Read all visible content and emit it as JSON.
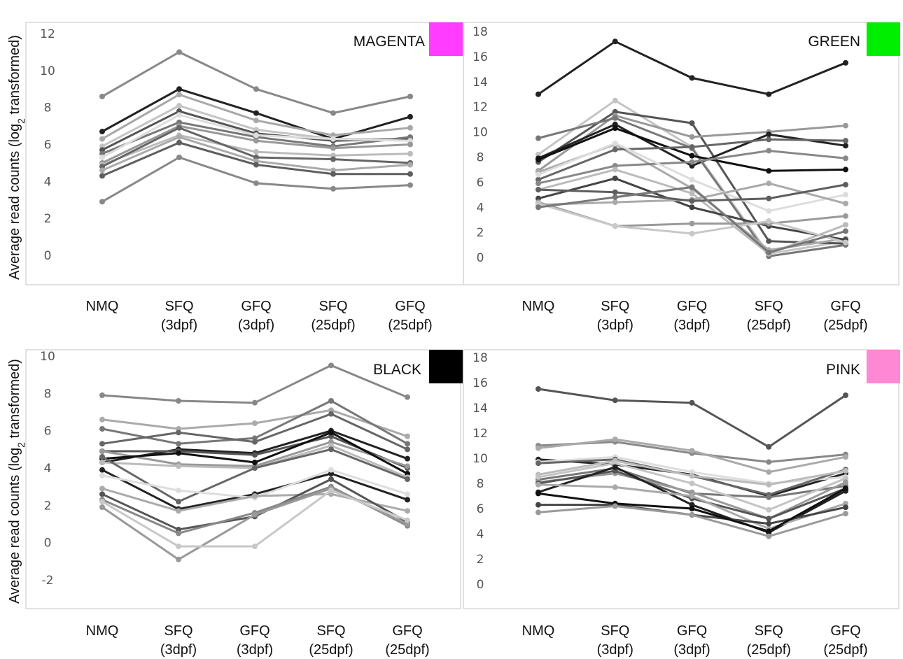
{
  "y_axis_label": "Average read counts (log",
  "y_axis_label_sub": "2",
  "y_axis_label_tail": " transformed)",
  "chart_data": [
    {
      "type": "line",
      "title": "MAGENTA",
      "color": "#ff3cff",
      "categories": [
        [
          "NMQ"
        ],
        [
          "SFQ",
          "(3dpf)"
        ],
        [
          "GFQ",
          "(3dpf)"
        ],
        [
          "SFQ",
          "(25dpf)"
        ],
        [
          "GFQ",
          "(25dpf)"
        ]
      ],
      "ylim": [
        -0.8,
        12.8
      ],
      "yticks": [
        0,
        2,
        4,
        6,
        8,
        10,
        12
      ],
      "series": [
        {
          "color": "#888888",
          "values": [
            8.6,
            11.0,
            9.0,
            7.7,
            8.6
          ]
        },
        {
          "color": "#222222",
          "values": [
            6.7,
            9.0,
            7.7,
            6.3,
            7.5
          ]
        },
        {
          "color": "#a8a8a8",
          "values": [
            6.3,
            8.7,
            7.3,
            6.5,
            6.9
          ]
        },
        {
          "color": "#c4c4c4",
          "values": [
            5.9,
            8.1,
            6.8,
            6.3,
            6.3
          ]
        },
        {
          "color": "#555555",
          "values": [
            5.7,
            7.8,
            6.6,
            6.2,
            6.3
          ]
        },
        {
          "color": "#777777",
          "values": [
            5.5,
            7.2,
            6.4,
            5.9,
            6.4
          ]
        },
        {
          "color": "#dddddd",
          "values": [
            5.3,
            7.6,
            6.5,
            6.3,
            6.2
          ]
        },
        {
          "color": "#999999",
          "values": [
            5.0,
            7.0,
            6.2,
            5.8,
            6.0
          ]
        },
        {
          "color": "#bbbbbb",
          "values": [
            4.9,
            6.5,
            5.6,
            5.4,
            5.5
          ]
        },
        {
          "color": "#666666",
          "values": [
            4.8,
            6.9,
            5.3,
            5.2,
            5.0
          ]
        },
        {
          "color": "#aaaaaa",
          "values": [
            4.6,
            6.4,
            5.1,
            4.6,
            4.9
          ]
        },
        {
          "color": "#5e5e5e",
          "values": [
            4.3,
            6.1,
            4.9,
            4.4,
            4.4
          ]
        },
        {
          "color": "#888888",
          "values": [
            2.9,
            5.3,
            3.9,
            3.6,
            3.8
          ]
        }
      ]
    },
    {
      "type": "line",
      "title": "GREEN",
      "color": "#00ee00",
      "categories": [
        [
          "NMQ"
        ],
        [
          "SFQ",
          "(3dpf)"
        ],
        [
          "GFQ",
          "(3dpf)"
        ],
        [
          "SFQ",
          "(25dpf)"
        ],
        [
          "GFQ",
          "(25dpf)"
        ]
      ],
      "ylim": [
        -1,
        19
      ],
      "yticks": [
        0,
        2,
        4,
        6,
        8,
        10,
        12,
        14,
        16,
        18
      ],
      "series": [
        {
          "color": "#222222",
          "values": [
            13.0,
            17.2,
            14.3,
            13.0,
            15.5
          ]
        },
        {
          "color": "#c4c4c4",
          "values": [
            8.2,
            12.5,
            8.8,
            0.3,
            1.3
          ]
        },
        {
          "color": "#555555",
          "values": [
            7.6,
            11.6,
            10.7,
            1.3,
            1.1
          ]
        },
        {
          "color": "#999999",
          "values": [
            6.9,
            11.3,
            9.6,
            10.0,
            10.5
          ]
        },
        {
          "color": "#222222",
          "values": [
            7.9,
            10.6,
            7.3,
            9.8,
            8.9
          ]
        },
        {
          "color": "#777777",
          "values": [
            9.5,
            11.1,
            8.7,
            0.1,
            1.0
          ]
        },
        {
          "color": "#111111",
          "values": [
            7.8,
            10.3,
            8.1,
            6.9,
            7.0
          ]
        },
        {
          "color": "#aaaaaa",
          "values": [
            6.8,
            9.0,
            5.5,
            0.6,
            1.5
          ]
        },
        {
          "color": "#666666",
          "values": [
            6.2,
            8.6,
            8.8,
            9.4,
            9.3
          ]
        },
        {
          "color": "#888888",
          "values": [
            5.9,
            7.3,
            7.6,
            8.5,
            7.9
          ]
        },
        {
          "color": "#dddddd",
          "values": [
            6.6,
            9.1,
            6.2,
            3.7,
            5.0
          ]
        },
        {
          "color": "#bbbbbb",
          "values": [
            5.4,
            7.0,
            5.1,
            0.3,
            2.6
          ]
        },
        {
          "color": "#444444",
          "values": [
            4.7,
            6.3,
            4.0,
            2.5,
            1.4
          ]
        },
        {
          "color": "#aaaaaa",
          "values": [
            4.2,
            4.4,
            4.6,
            5.9,
            4.3
          ]
        },
        {
          "color": "#5e5e5e",
          "values": [
            5.4,
            5.2,
            4.5,
            4.7,
            5.8
          ]
        },
        {
          "color": "#9a9a9a",
          "values": [
            4.4,
            2.5,
            2.7,
            2.7,
            3.3
          ]
        },
        {
          "color": "#c8c8c8",
          "values": [
            4.3,
            2.5,
            1.9,
            2.9,
            1.2
          ]
        },
        {
          "color": "#777777",
          "values": [
            4.0,
            4.8,
            5.6,
            0.4,
            2.1
          ]
        }
      ]
    },
    {
      "type": "line",
      "title": "BLACK",
      "color": "#000000",
      "categories": [
        [
          "NMQ"
        ],
        [
          "SFQ",
          "(3dpf)"
        ],
        [
          "GFQ",
          "(3dpf)"
        ],
        [
          "SFQ",
          "(25dpf)"
        ],
        [
          "GFQ",
          "(25dpf)"
        ]
      ],
      "ylim": [
        -2.9,
        10.6
      ],
      "yticks": [
        -2,
        0,
        2,
        4,
        6,
        8,
        10
      ],
      "series": [
        {
          "color": "#888888",
          "values": [
            7.9,
            7.6,
            7.5,
            9.5,
            7.8
          ]
        },
        {
          "color": "#aaaaaa",
          "values": [
            6.6,
            6.1,
            6.4,
            7.1,
            5.7
          ]
        },
        {
          "color": "#777777",
          "values": [
            6.1,
            5.3,
            5.6,
            7.6,
            5.3
          ]
        },
        {
          "color": "#666666",
          "values": [
            5.3,
            5.9,
            5.4,
            6.9,
            5.0
          ]
        },
        {
          "color": "#222222",
          "values": [
            4.3,
            5.0,
            4.8,
            6.0,
            4.5
          ]
        },
        {
          "color": "#555555",
          "values": [
            4.9,
            4.9,
            4.7,
            5.7,
            4.0
          ]
        },
        {
          "color": "#999999",
          "values": [
            4.9,
            4.2,
            4.1,
            5.4,
            4.1
          ]
        },
        {
          "color": "#111111",
          "values": [
            4.5,
            4.8,
            4.3,
            5.9,
            3.7
          ]
        },
        {
          "color": "#bbbbbb",
          "values": [
            4.3,
            4.1,
            4.0,
            5.2,
            3.5
          ]
        },
        {
          "color": "#666666",
          "values": [
            4.6,
            2.2,
            4.0,
            5.0,
            3.4
          ]
        },
        {
          "color": "#222222",
          "values": [
            3.9,
            1.8,
            2.6,
            3.7,
            2.3
          ]
        },
        {
          "color": "#dddddd",
          "values": [
            3.6,
            2.8,
            2.4,
            3.9,
            2.6
          ]
        },
        {
          "color": "#aaaaaa",
          "values": [
            2.9,
            1.7,
            2.5,
            2.6,
            1.7
          ]
        },
        {
          "color": "#555555",
          "values": [
            2.6,
            0.7,
            1.4,
            3.4,
            1.1
          ]
        },
        {
          "color": "#888888",
          "values": [
            2.3,
            0.5,
            1.6,
            3.0,
            0.9
          ]
        },
        {
          "color": "#999999",
          "values": [
            1.9,
            -0.9,
            1.5,
            2.9,
            1.0
          ]
        },
        {
          "color": "#c8c8c8",
          "values": [
            2.2,
            -0.2,
            -0.2,
            2.8,
            1.2
          ]
        }
      ]
    },
    {
      "type": "line",
      "title": "PINK",
      "color": "#ff88d4",
      "categories": [
        [
          "NMQ"
        ],
        [
          "SFQ",
          "(3dpf)"
        ],
        [
          "GFQ",
          "(3dpf)"
        ],
        [
          "SFQ",
          "(25dpf)"
        ],
        [
          "GFQ",
          "(25dpf)"
        ]
      ],
      "ylim": [
        -1,
        19
      ],
      "yticks": [
        0,
        2,
        4,
        6,
        8,
        10,
        12,
        14,
        16,
        18
      ],
      "series": [
        {
          "color": "#555555",
          "values": [
            15.5,
            14.6,
            14.4,
            10.9,
            15.0
          ]
        },
        {
          "color": "#888888",
          "values": [
            11.0,
            11.3,
            10.4,
            9.7,
            10.3
          ]
        },
        {
          "color": "#aaaaaa",
          "values": [
            10.8,
            11.5,
            10.6,
            8.9,
            10.1
          ]
        },
        {
          "color": "#222222",
          "values": [
            9.9,
            9.5,
            8.7,
            7.0,
            8.8
          ]
        },
        {
          "color": "#dddddd",
          "values": [
            9.7,
            10.1,
            8.9,
            8.0,
            8.5
          ]
        },
        {
          "color": "#666666",
          "values": [
            9.6,
            9.9,
            8.6,
            7.1,
            9.1
          ]
        },
        {
          "color": "#bbbbbb",
          "values": [
            8.7,
            9.8,
            8.6,
            7.9,
            9.0
          ]
        },
        {
          "color": "#777777",
          "values": [
            8.3,
            9.2,
            7.2,
            6.9,
            7.8
          ]
        },
        {
          "color": "#c4c4c4",
          "values": [
            8.5,
            9.6,
            8.0,
            5.9,
            8.4
          ]
        },
        {
          "color": "#999999",
          "values": [
            8.1,
            8.8,
            7.3,
            5.2,
            8.1
          ]
        },
        {
          "color": "#555555",
          "values": [
            8.0,
            9.0,
            6.8,
            5.2,
            7.6
          ]
        },
        {
          "color": "#222222",
          "values": [
            7.3,
            9.3,
            6.3,
            4.1,
            7.4
          ]
        },
        {
          "color": "#aaaaaa",
          "values": [
            7.9,
            7.7,
            7.0,
            4.4,
            6.4
          ]
        },
        {
          "color": "#444444",
          "values": [
            6.3,
            6.3,
            5.5,
            4.8,
            6.1
          ]
        },
        {
          "color": "#111111",
          "values": [
            7.2,
            6.4,
            6.0,
            4.2,
            7.6
          ]
        },
        {
          "color": "#9a9a9a",
          "values": [
            5.7,
            6.2,
            5.5,
            3.8,
            5.6
          ]
        }
      ]
    }
  ]
}
